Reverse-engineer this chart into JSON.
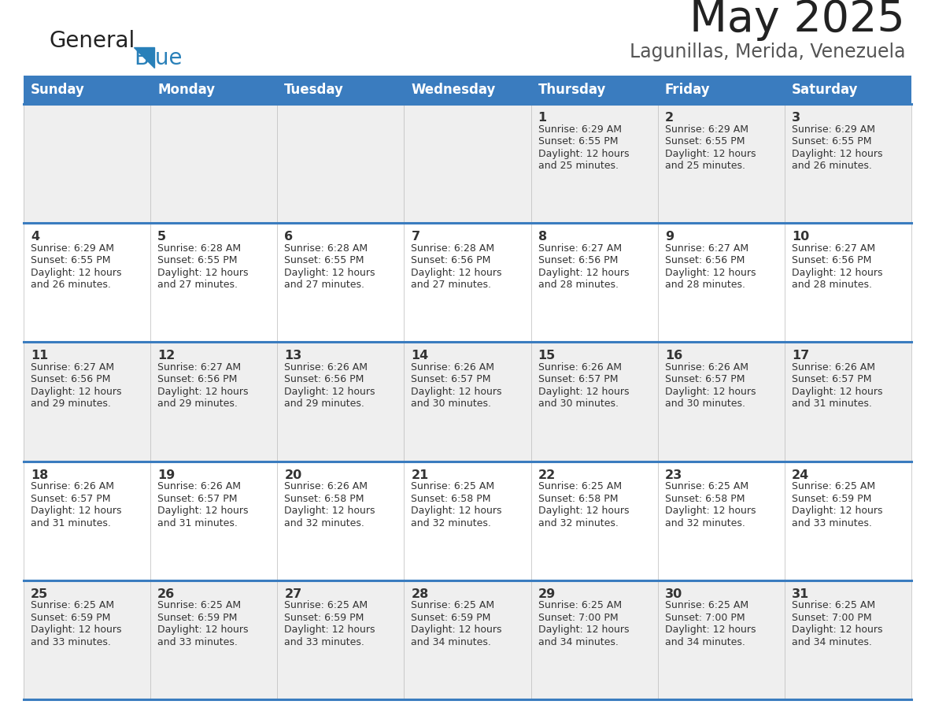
{
  "title": "May 2025",
  "subtitle": "Lagunillas, Merida, Venezuela",
  "days_of_week": [
    "Sunday",
    "Monday",
    "Tuesday",
    "Wednesday",
    "Thursday",
    "Friday",
    "Saturday"
  ],
  "header_bg": "#3a7cbf",
  "header_text": "#ffffff",
  "cell_bg_even": "#efefef",
  "cell_bg_odd": "#ffffff",
  "divider_color": "#3a7cbf",
  "text_color": "#333333",
  "title_color": "#222222",
  "subtitle_color": "#555555",
  "calendar_data": [
    [
      null,
      null,
      null,
      null,
      {
        "day": 1,
        "sunrise": "6:29 AM",
        "sunset": "6:55 PM",
        "daylight": "12 hours",
        "daylight2": "and 25 minutes."
      },
      {
        "day": 2,
        "sunrise": "6:29 AM",
        "sunset": "6:55 PM",
        "daylight": "12 hours",
        "daylight2": "and 25 minutes."
      },
      {
        "day": 3,
        "sunrise": "6:29 AM",
        "sunset": "6:55 PM",
        "daylight": "12 hours",
        "daylight2": "and 26 minutes."
      }
    ],
    [
      {
        "day": 4,
        "sunrise": "6:29 AM",
        "sunset": "6:55 PM",
        "daylight": "12 hours",
        "daylight2": "and 26 minutes."
      },
      {
        "day": 5,
        "sunrise": "6:28 AM",
        "sunset": "6:55 PM",
        "daylight": "12 hours",
        "daylight2": "and 27 minutes."
      },
      {
        "day": 6,
        "sunrise": "6:28 AM",
        "sunset": "6:55 PM",
        "daylight": "12 hours",
        "daylight2": "and 27 minutes."
      },
      {
        "day": 7,
        "sunrise": "6:28 AM",
        "sunset": "6:56 PM",
        "daylight": "12 hours",
        "daylight2": "and 27 minutes."
      },
      {
        "day": 8,
        "sunrise": "6:27 AM",
        "sunset": "6:56 PM",
        "daylight": "12 hours",
        "daylight2": "and 28 minutes."
      },
      {
        "day": 9,
        "sunrise": "6:27 AM",
        "sunset": "6:56 PM",
        "daylight": "12 hours",
        "daylight2": "and 28 minutes."
      },
      {
        "day": 10,
        "sunrise": "6:27 AM",
        "sunset": "6:56 PM",
        "daylight": "12 hours",
        "daylight2": "and 28 minutes."
      }
    ],
    [
      {
        "day": 11,
        "sunrise": "6:27 AM",
        "sunset": "6:56 PM",
        "daylight": "12 hours",
        "daylight2": "and 29 minutes."
      },
      {
        "day": 12,
        "sunrise": "6:27 AM",
        "sunset": "6:56 PM",
        "daylight": "12 hours",
        "daylight2": "and 29 minutes."
      },
      {
        "day": 13,
        "sunrise": "6:26 AM",
        "sunset": "6:56 PM",
        "daylight": "12 hours",
        "daylight2": "and 29 minutes."
      },
      {
        "day": 14,
        "sunrise": "6:26 AM",
        "sunset": "6:57 PM",
        "daylight": "12 hours",
        "daylight2": "and 30 minutes."
      },
      {
        "day": 15,
        "sunrise": "6:26 AM",
        "sunset": "6:57 PM",
        "daylight": "12 hours",
        "daylight2": "and 30 minutes."
      },
      {
        "day": 16,
        "sunrise": "6:26 AM",
        "sunset": "6:57 PM",
        "daylight": "12 hours",
        "daylight2": "and 30 minutes."
      },
      {
        "day": 17,
        "sunrise": "6:26 AM",
        "sunset": "6:57 PM",
        "daylight": "12 hours",
        "daylight2": "and 31 minutes."
      }
    ],
    [
      {
        "day": 18,
        "sunrise": "6:26 AM",
        "sunset": "6:57 PM",
        "daylight": "12 hours",
        "daylight2": "and 31 minutes."
      },
      {
        "day": 19,
        "sunrise": "6:26 AM",
        "sunset": "6:57 PM",
        "daylight": "12 hours",
        "daylight2": "and 31 minutes."
      },
      {
        "day": 20,
        "sunrise": "6:26 AM",
        "sunset": "6:58 PM",
        "daylight": "12 hours",
        "daylight2": "and 32 minutes."
      },
      {
        "day": 21,
        "sunrise": "6:25 AM",
        "sunset": "6:58 PM",
        "daylight": "12 hours",
        "daylight2": "and 32 minutes."
      },
      {
        "day": 22,
        "sunrise": "6:25 AM",
        "sunset": "6:58 PM",
        "daylight": "12 hours",
        "daylight2": "and 32 minutes."
      },
      {
        "day": 23,
        "sunrise": "6:25 AM",
        "sunset": "6:58 PM",
        "daylight": "12 hours",
        "daylight2": "and 32 minutes."
      },
      {
        "day": 24,
        "sunrise": "6:25 AM",
        "sunset": "6:59 PM",
        "daylight": "12 hours",
        "daylight2": "and 33 minutes."
      }
    ],
    [
      {
        "day": 25,
        "sunrise": "6:25 AM",
        "sunset": "6:59 PM",
        "daylight": "12 hours",
        "daylight2": "and 33 minutes."
      },
      {
        "day": 26,
        "sunrise": "6:25 AM",
        "sunset": "6:59 PM",
        "daylight": "12 hours",
        "daylight2": "and 33 minutes."
      },
      {
        "day": 27,
        "sunrise": "6:25 AM",
        "sunset": "6:59 PM",
        "daylight": "12 hours",
        "daylight2": "and 33 minutes."
      },
      {
        "day": 28,
        "sunrise": "6:25 AM",
        "sunset": "6:59 PM",
        "daylight": "12 hours",
        "daylight2": "and 34 minutes."
      },
      {
        "day": 29,
        "sunrise": "6:25 AM",
        "sunset": "7:00 PM",
        "daylight": "12 hours",
        "daylight2": "and 34 minutes."
      },
      {
        "day": 30,
        "sunrise": "6:25 AM",
        "sunset": "7:00 PM",
        "daylight": "12 hours",
        "daylight2": "and 34 minutes."
      },
      {
        "day": 31,
        "sunrise": "6:25 AM",
        "sunset": "7:00 PM",
        "daylight": "12 hours",
        "daylight2": "and 34 minutes."
      }
    ]
  ],
  "logo_general_color": "#222222",
  "logo_blue_color": "#2980b9",
  "logo_triangle_color": "#2980b9"
}
